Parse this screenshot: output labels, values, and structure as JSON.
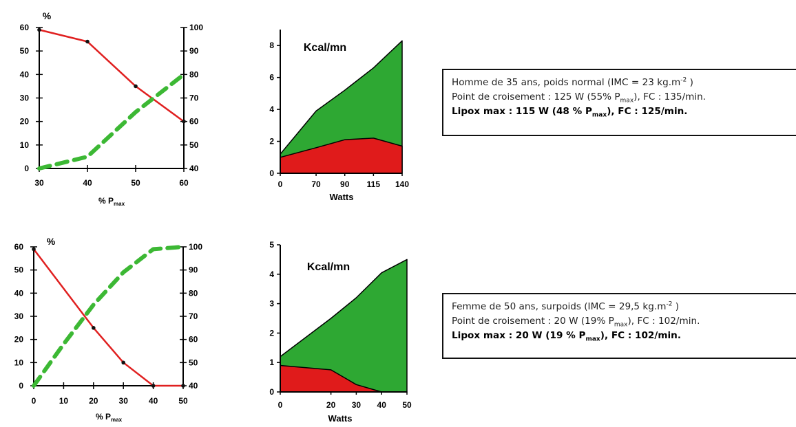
{
  "chart_data": [
    {
      "type": "line",
      "id": "c1",
      "title": "",
      "ylabel": "%",
      "xlabel_main": "% P",
      "xlabel_sub": "max",
      "xlim": [
        30,
        60
      ],
      "ylim": [
        0,
        60
      ],
      "y2lim": [
        40,
        100
      ],
      "x_ticks": [
        30,
        40,
        50,
        60
      ],
      "y_ticks": [
        0,
        10,
        20,
        30,
        40,
        50,
        60
      ],
      "y2_ticks": [
        40,
        50,
        60,
        70,
        80,
        90,
        100
      ],
      "series": [
        {
          "axis": "left",
          "color": "#e02020",
          "style": "solid",
          "points": [
            [
              30,
              59
            ],
            [
              40,
              54
            ],
            [
              50,
              35
            ],
            [
              60,
              20
            ]
          ]
        },
        {
          "axis": "right",
          "color": "#3cb834",
          "style": "dashed",
          "points": [
            [
              30,
              40
            ],
            [
              40,
              45
            ],
            [
              50,
              64
            ],
            [
              60,
              80
            ]
          ]
        }
      ]
    },
    {
      "type": "area",
      "id": "c2",
      "title": "Kcal/mn",
      "xlabel": "Watts",
      "ylim": [
        0,
        9
      ],
      "y_ticks": [
        0,
        2,
        4,
        6,
        8
      ],
      "x_ticks": [
        "0",
        "70",
        "90",
        "115",
        "140"
      ],
      "x_positions": [
        0,
        25,
        45,
        65,
        85
      ],
      "series": [
        {
          "color": "#2ea833",
          "points": [
            [
              0,
              1.2
            ],
            [
              25,
              3.9
            ],
            [
              45,
              5.2
            ],
            [
              65,
              6.6
            ],
            [
              85,
              8.3
            ]
          ]
        },
        {
          "color": "#e01b1b",
          "points": [
            [
              0,
              1.0
            ],
            [
              25,
              1.6
            ],
            [
              45,
              2.1
            ],
            [
              65,
              2.2
            ],
            [
              85,
              1.7
            ]
          ]
        }
      ]
    },
    {
      "type": "line",
      "id": "c3",
      "title": "",
      "ylabel": "%",
      "xlabel_main": "% P",
      "xlabel_sub": "max",
      "xlim": [
        0,
        50
      ],
      "ylim": [
        0,
        60
      ],
      "y2lim": [
        40,
        100
      ],
      "x_ticks": [
        0,
        10,
        20,
        30,
        40,
        50
      ],
      "y_ticks": [
        0,
        10,
        20,
        30,
        40,
        50,
        60
      ],
      "y2_ticks": [
        40,
        50,
        60,
        70,
        80,
        90,
        100
      ],
      "series": [
        {
          "axis": "left",
          "color": "#e02020",
          "style": "solid",
          "points": [
            [
              0,
              59
            ],
            [
              20,
              25
            ],
            [
              30,
              10
            ],
            [
              40,
              0
            ],
            [
              50,
              0
            ]
          ]
        },
        {
          "axis": "right",
          "color": "#3cb834",
          "style": "dashed",
          "points": [
            [
              0,
              40
            ],
            [
              10,
              58
            ],
            [
              20,
              75
            ],
            [
              30,
              89
            ],
            [
              40,
              99
            ],
            [
              50,
              100
            ]
          ]
        }
      ]
    },
    {
      "type": "area",
      "id": "c4",
      "title": "Kcal/mn",
      "xlabel": "Watts",
      "ylim": [
        0,
        5
      ],
      "y_ticks": [
        0,
        1,
        2,
        3,
        4,
        5
      ],
      "x_ticks": [
        "0",
        "20",
        "30",
        "40",
        "50"
      ],
      "x_positions": [
        0,
        20,
        30,
        40,
        50
      ],
      "series": [
        {
          "color": "#2ea833",
          "points": [
            [
              0,
              1.2
            ],
            [
              20,
              2.5
            ],
            [
              30,
              3.2
            ],
            [
              40,
              4.05
            ],
            [
              50,
              4.5
            ]
          ]
        },
        {
          "color": "#e01b1b",
          "points": [
            [
              0,
              0.9
            ],
            [
              20,
              0.75
            ],
            [
              30,
              0.25
            ],
            [
              40,
              0.0
            ],
            [
              50,
              0.0
            ]
          ]
        }
      ]
    }
  ],
  "info_boxes": [
    {
      "line1": "Homme de 35 ans, poids normal (IMC = 23 kg.m",
      "line1_sup": "-2",
      "line1_end": " )",
      "line2_a": "Point de croisement : 125 W (55% P",
      "line2_sub": "max",
      "line2_b": "), FC : 135/min.",
      "line3_a": "Lipox max : 115 W (48 % P",
      "line3_sub": "max",
      "line3_b": "), FC : 125/min."
    },
    {
      "line1": "Femme de 50 ans, surpoids (IMC = 29,5 kg.m",
      "line1_sup": "-2",
      "line1_end": " )",
      "line2_a": "Point de croisement : 20 W (19% P",
      "line2_sub": "max",
      "line2_b": "), FC : 102/min.",
      "line3_a": "Lipox max : 20 W (19 % P",
      "line3_sub": "max",
      "line3_b": "), FC : 102/min."
    }
  ]
}
